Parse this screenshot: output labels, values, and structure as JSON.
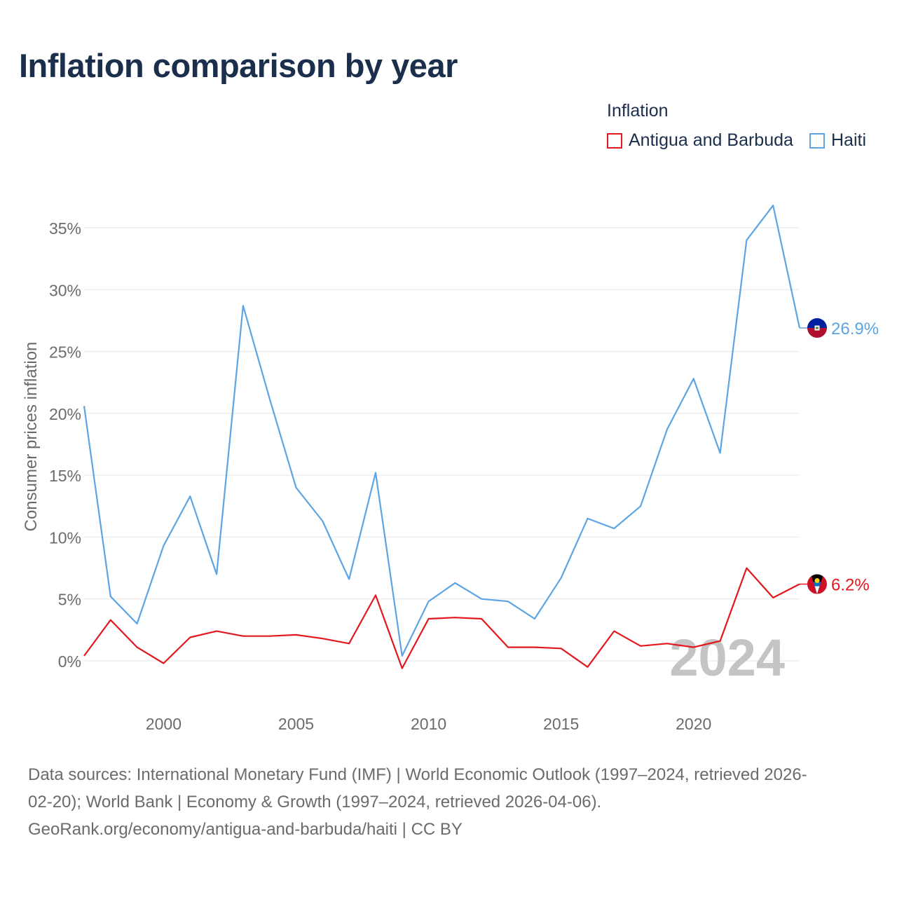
{
  "title": "Inflation comparison by year",
  "legend": {
    "title": "Inflation",
    "items": [
      {
        "label": "Antigua and Barbuda",
        "color": "#e3181f"
      },
      {
        "label": "Haiti",
        "color": "#5da4e3"
      }
    ]
  },
  "chart_data": {
    "type": "line",
    "title": "Inflation comparison by year",
    "ylabel": "Consumer prices inflation",
    "xlabel": "",
    "ylim": [
      -3.5,
      37
    ],
    "yticks": [
      0,
      5,
      10,
      15,
      20,
      25,
      30,
      35
    ],
    "ytick_labels": [
      "0%",
      "5%",
      "10%",
      "15%",
      "20%",
      "25%",
      "30%",
      "35%"
    ],
    "xticks": [
      2000,
      2005,
      2010,
      2015,
      2020
    ],
    "xtick_labels": [
      "2000",
      "2005",
      "2010",
      "2015",
      "2020"
    ],
    "x": [
      1997,
      1998,
      1999,
      2000,
      2001,
      2002,
      2003,
      2004,
      2005,
      2006,
      2007,
      2008,
      2009,
      2010,
      2011,
      2012,
      2013,
      2014,
      2015,
      2016,
      2017,
      2018,
      2019,
      2020,
      2021,
      2022,
      2023,
      2024
    ],
    "series": [
      {
        "name": "Antigua and Barbuda",
        "color": "#e3181f",
        "end_label": "6.2%",
        "values": [
          0.4,
          3.3,
          1.1,
          -0.2,
          1.9,
          2.4,
          2.0,
          2.0,
          2.1,
          1.8,
          1.4,
          5.3,
          -0.6,
          3.4,
          3.5,
          3.4,
          1.1,
          1.1,
          1.0,
          -0.5,
          2.4,
          1.2,
          1.4,
          1.1,
          1.6,
          7.5,
          5.1,
          6.2
        ]
      },
      {
        "name": "Haiti",
        "color": "#5da4e3",
        "end_label": "26.9%",
        "values": [
          20.6,
          5.2,
          3.0,
          9.3,
          13.3,
          7.0,
          28.7,
          21.2,
          14.0,
          11.3,
          6.6,
          15.2,
          0.4,
          4.8,
          6.3,
          5.0,
          4.8,
          3.4,
          6.7,
          11.5,
          10.7,
          12.5,
          18.7,
          22.8,
          16.8,
          34.0,
          36.8,
          26.9
        ]
      }
    ],
    "year_watermark": "2024",
    "grid": true,
    "legend_position": "top-right"
  },
  "footer": {
    "line1": "Data sources: International Monetary Fund (IMF) | World Economic Outlook (1997–2024, retrieved 2026-",
    "line2": "02-20); World Bank | Economy & Growth (1997–2024, retrieved 2026-04-06).",
    "line3": "GeoRank.org/economy/antigua-and-barbuda/haiti | CC BY"
  }
}
